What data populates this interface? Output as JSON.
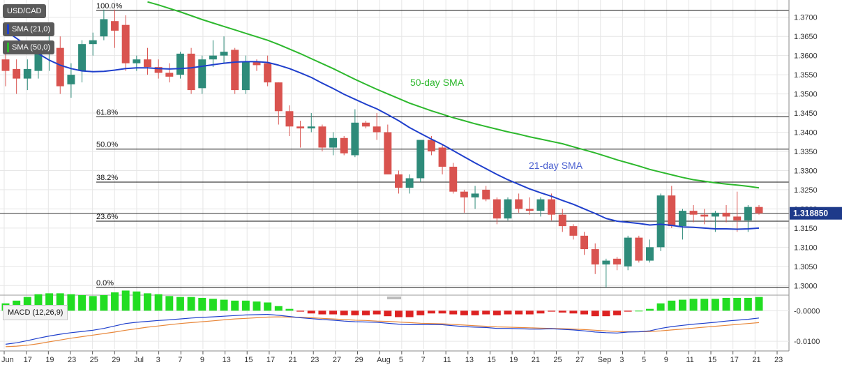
{
  "chart_data": {
    "type": "candlestick",
    "symbol": "USD/CAD",
    "last_price_label": "1.318850",
    "last_price": 1.31885,
    "indicators": {
      "sma21_label": "SMA (21,0)",
      "sma50_label": "SMA (50,0)",
      "sma21_annotation": "21-day SMA",
      "sma50_annotation": "50-day SMA",
      "macd_label": "MACD (12,26,9)"
    },
    "y_ticks": [
      1.3,
      1.305,
      1.31,
      1.315,
      1.32,
      1.325,
      1.33,
      1.335,
      1.34,
      1.345,
      1.35,
      1.355,
      1.36,
      1.365,
      1.37
    ],
    "y_tick_labels": [
      "1.3000",
      "1.3050",
      "1.3100",
      "1.3150",
      "1.3200",
      "1.3250",
      "1.3300",
      "1.3350",
      "1.3400",
      "1.3450",
      "1.3500",
      "1.3550",
      "1.3600",
      "1.3650",
      "1.3700"
    ],
    "ylim": [
      1.2975,
      1.3745
    ],
    "macd_y_ticks": [
      0.0,
      -0.01
    ],
    "macd_y_tick_labels": [
      "-0.0000",
      "-0.0100"
    ],
    "macd_ylim": [
      -0.0125,
      0.0035
    ],
    "x_tick_labels": [
      "Jun",
      "17",
      "19",
      "23",
      "25",
      "29",
      "Jul",
      "3",
      "7",
      "9",
      "13",
      "15",
      "17",
      "21",
      "23",
      "27",
      "29",
      "Aug",
      "5",
      "7",
      "11",
      "13",
      "15",
      "19",
      "21",
      "25",
      "27",
      "Sep",
      "3",
      "5",
      "9",
      "11",
      "15",
      "17",
      "21",
      "23"
    ],
    "fibonacci": [
      {
        "label": "100.0%",
        "price": 1.3718
      },
      {
        "label": "61.8%",
        "price": 1.344
      },
      {
        "label": "50.0%",
        "price": 1.3356
      },
      {
        "label": "38.2%",
        "price": 1.327
      },
      {
        "label": "23.6%",
        "price": 1.3168
      },
      {
        "label": "0.0%",
        "price": 1.2995
      }
    ],
    "candles": [
      {
        "o": 1.359,
        "h": 1.361,
        "l": 1.352,
        "c": 1.356
      },
      {
        "o": 1.3565,
        "h": 1.359,
        "l": 1.35,
        "c": 1.354
      },
      {
        "o": 1.354,
        "h": 1.359,
        "l": 1.351,
        "c": 1.3565
      },
      {
        "o": 1.356,
        "h": 1.364,
        "l": 1.354,
        "c": 1.361
      },
      {
        "o": 1.3605,
        "h": 1.366,
        "l": 1.356,
        "c": 1.362
      },
      {
        "o": 1.362,
        "h": 1.365,
        "l": 1.35,
        "c": 1.352
      },
      {
        "o": 1.3525,
        "h": 1.358,
        "l": 1.349,
        "c": 1.355
      },
      {
        "o": 1.356,
        "h": 1.364,
        "l": 1.353,
        "c": 1.363
      },
      {
        "o": 1.363,
        "h": 1.366,
        "l": 1.36,
        "c": 1.364
      },
      {
        "o": 1.365,
        "h": 1.372,
        "l": 1.364,
        "c": 1.3695
      },
      {
        "o": 1.369,
        "h": 1.372,
        "l": 1.362,
        "c": 1.3665
      },
      {
        "o": 1.368,
        "h": 1.3705,
        "l": 1.356,
        "c": 1.358
      },
      {
        "o": 1.358,
        "h": 1.36,
        "l": 1.356,
        "c": 1.359
      },
      {
        "o": 1.359,
        "h": 1.362,
        "l": 1.355,
        "c": 1.357
      },
      {
        "o": 1.357,
        "h": 1.359,
        "l": 1.354,
        "c": 1.3555
      },
      {
        "o": 1.3555,
        "h": 1.358,
        "l": 1.353,
        "c": 1.3545
      },
      {
        "o": 1.355,
        "h": 1.361,
        "l": 1.354,
        "c": 1.3605
      },
      {
        "o": 1.3605,
        "h": 1.362,
        "l": 1.35,
        "c": 1.351
      },
      {
        "o": 1.3515,
        "h": 1.36,
        "l": 1.35,
        "c": 1.359
      },
      {
        "o": 1.359,
        "h": 1.364,
        "l": 1.357,
        "c": 1.36
      },
      {
        "o": 1.36,
        "h": 1.365,
        "l": 1.358,
        "c": 1.361
      },
      {
        "o": 1.3615,
        "h": 1.362,
        "l": 1.35,
        "c": 1.351
      },
      {
        "o": 1.351,
        "h": 1.36,
        "l": 1.35,
        "c": 1.3585
      },
      {
        "o": 1.3585,
        "h": 1.359,
        "l": 1.356,
        "c": 1.3575
      },
      {
        "o": 1.358,
        "h": 1.36,
        "l": 1.352,
        "c": 1.353
      },
      {
        "o": 1.353,
        "h": 1.353,
        "l": 1.342,
        "c": 1.3455
      },
      {
        "o": 1.3455,
        "h": 1.347,
        "l": 1.339,
        "c": 1.3415
      },
      {
        "o": 1.3415,
        "h": 1.343,
        "l": 1.336,
        "c": 1.341
      },
      {
        "o": 1.341,
        "h": 1.345,
        "l": 1.34,
        "c": 1.3415
      },
      {
        "o": 1.3415,
        "h": 1.342,
        "l": 1.335,
        "c": 1.336
      },
      {
        "o": 1.336,
        "h": 1.34,
        "l": 1.334,
        "c": 1.3385
      },
      {
        "o": 1.3385,
        "h": 1.339,
        "l": 1.334,
        "c": 1.3345
      },
      {
        "o": 1.334,
        "h": 1.346,
        "l": 1.3335,
        "c": 1.3425
      },
      {
        "o": 1.3425,
        "h": 1.343,
        "l": 1.341,
        "c": 1.3415
      },
      {
        "o": 1.3415,
        "h": 1.345,
        "l": 1.338,
        "c": 1.34
      },
      {
        "o": 1.34,
        "h": 1.342,
        "l": 1.329,
        "c": 1.329
      },
      {
        "o": 1.329,
        "h": 1.33,
        "l": 1.324,
        "c": 1.3255
      },
      {
        "o": 1.3255,
        "h": 1.329,
        "l": 1.324,
        "c": 1.328
      },
      {
        "o": 1.328,
        "h": 1.338,
        "l": 1.327,
        "c": 1.338
      },
      {
        "o": 1.338,
        "h": 1.339,
        "l": 1.334,
        "c": 1.335
      },
      {
        "o": 1.336,
        "h": 1.337,
        "l": 1.329,
        "c": 1.331
      },
      {
        "o": 1.331,
        "h": 1.332,
        "l": 1.324,
        "c": 1.3245
      },
      {
        "o": 1.3245,
        "h": 1.325,
        "l": 1.319,
        "c": 1.323
      },
      {
        "o": 1.323,
        "h": 1.326,
        "l": 1.32,
        "c": 1.324
      },
      {
        "o": 1.325,
        "h": 1.326,
        "l": 1.322,
        "c": 1.3225
      },
      {
        "o": 1.3225,
        "h": 1.323,
        "l": 1.316,
        "c": 1.3175
      },
      {
        "o": 1.3175,
        "h": 1.323,
        "l": 1.317,
        "c": 1.3225
      },
      {
        "o": 1.3225,
        "h": 1.324,
        "l": 1.319,
        "c": 1.32
      },
      {
        "o": 1.32,
        "h": 1.323,
        "l": 1.3185,
        "c": 1.3195
      },
      {
        "o": 1.3195,
        "h": 1.323,
        "l": 1.318,
        "c": 1.3225
      },
      {
        "o": 1.3225,
        "h": 1.324,
        "l": 1.317,
        "c": 1.3185
      },
      {
        "o": 1.3185,
        "h": 1.32,
        "l": 1.314,
        "c": 1.3155
      },
      {
        "o": 1.3155,
        "h": 1.316,
        "l": 1.312,
        "c": 1.313
      },
      {
        "o": 1.313,
        "h": 1.314,
        "l": 1.308,
        "c": 1.3095
      },
      {
        "o": 1.3095,
        "h": 1.311,
        "l": 1.303,
        "c": 1.3055
      },
      {
        "o": 1.3055,
        "h": 1.307,
        "l": 1.2995,
        "c": 1.3065
      },
      {
        "o": 1.307,
        "h": 1.3075,
        "l": 1.304,
        "c": 1.3055
      },
      {
        "o": 1.305,
        "h": 1.313,
        "l": 1.304,
        "c": 1.3125
      },
      {
        "o": 1.3125,
        "h": 1.313,
        "l": 1.306,
        "c": 1.3065
      },
      {
        "o": 1.3065,
        "h": 1.312,
        "l": 1.306,
        "c": 1.31
      },
      {
        "o": 1.31,
        "h": 1.324,
        "l": 1.309,
        "c": 1.3235
      },
      {
        "o": 1.3235,
        "h": 1.326,
        "l": 1.315,
        "c": 1.3155
      },
      {
        "o": 1.3155,
        "h": 1.32,
        "l": 1.312,
        "c": 1.3195
      },
      {
        "o": 1.3195,
        "h": 1.321,
        "l": 1.3165,
        "c": 1.3185
      },
      {
        "o": 1.3185,
        "h": 1.32,
        "l": 1.316,
        "c": 1.318
      },
      {
        "o": 1.318,
        "h": 1.3195,
        "l": 1.314,
        "c": 1.319
      },
      {
        "o": 1.319,
        "h": 1.321,
        "l": 1.3165,
        "c": 1.318
      },
      {
        "o": 1.318,
        "h": 1.3245,
        "l": 1.314,
        "c": 1.317
      },
      {
        "o": 1.317,
        "h": 1.321,
        "l": 1.314,
        "c": 1.3205
      },
      {
        "o": 1.3205,
        "h": 1.321,
        "l": 1.3185,
        "c": 1.31885
      }
    ],
    "sma21": [
      1.3665,
      1.3645,
      1.3625,
      1.3605,
      1.3588,
      1.3575,
      1.3566,
      1.356,
      1.3558,
      1.3559,
      1.3562,
      1.3566,
      1.3568,
      1.3568,
      1.3566,
      1.3565,
      1.3566,
      1.3568,
      1.3572,
      1.3576,
      1.358,
      1.3583,
      1.3584,
      1.3584,
      1.3582,
      1.3575,
      1.3566,
      1.3555,
      1.3543,
      1.3528,
      1.3514,
      1.3499,
      1.3486,
      1.3473,
      1.3461,
      1.3446,
      1.343,
      1.3412,
      1.3397,
      1.3382,
      1.3368,
      1.3352,
      1.3336,
      1.332,
      1.3305,
      1.329,
      1.3276,
      1.3264,
      1.3252,
      1.3242,
      1.3233,
      1.3222,
      1.3212,
      1.32,
      1.3188,
      1.3175,
      1.3168,
      1.3165,
      1.3162,
      1.3158,
      1.316,
      1.3157,
      1.3153,
      1.3152,
      1.315,
      1.3148,
      1.3148,
      1.3147,
      1.3148,
      1.315
    ],
    "sma50": [
      null,
      null,
      null,
      null,
      null,
      null,
      null,
      null,
      null,
      null,
      null,
      null,
      null,
      1.374,
      1.3732,
      1.3723,
      1.3714,
      1.3704,
      1.3694,
      1.3685,
      1.3676,
      1.3667,
      1.3658,
      1.3649,
      1.364,
      1.3629,
      1.3617,
      1.3605,
      1.3592,
      1.3579,
      1.3566,
      1.3552,
      1.3538,
      1.3525,
      1.3512,
      1.35,
      1.3488,
      1.3476,
      1.3466,
      1.3456,
      1.3447,
      1.3438,
      1.343,
      1.3422,
      1.3415,
      1.3408,
      1.3401,
      1.3395,
      1.3388,
      1.3382,
      1.3376,
      1.337,
      1.3362,
      1.3354,
      1.3346,
      1.3337,
      1.3328,
      1.332,
      1.3312,
      1.3303,
      1.3296,
      1.3289,
      1.3282,
      1.3276,
      1.3272,
      1.3268,
      1.3265,
      1.3262,
      1.3259,
      1.3255
    ],
    "macd_line": [
      -0.011,
      -0.0105,
      -0.0098,
      -0.009,
      -0.0083,
      -0.0077,
      -0.0072,
      -0.0068,
      -0.0064,
      -0.0058,
      -0.005,
      -0.0042,
      -0.0038,
      -0.0035,
      -0.0032,
      -0.003,
      -0.0027,
      -0.0024,
      -0.0022,
      -0.002,
      -0.0018,
      -0.0016,
      -0.0014,
      -0.0013,
      -0.0012,
      -0.0015,
      -0.0019,
      -0.0023,
      -0.0026,
      -0.0029,
      -0.0031,
      -0.0034,
      -0.0036,
      -0.0037,
      -0.0038,
      -0.0041,
      -0.0044,
      -0.0046,
      -0.0046,
      -0.0045,
      -0.0046,
      -0.0049,
      -0.0052,
      -0.0054,
      -0.0055,
      -0.0058,
      -0.0058,
      -0.0059,
      -0.006,
      -0.006,
      -0.0059,
      -0.0061,
      -0.0063,
      -0.0066,
      -0.007,
      -0.0072,
      -0.0073,
      -0.007,
      -0.0069,
      -0.0066,
      -0.0058,
      -0.0052,
      -0.0048,
      -0.0044,
      -0.0041,
      -0.0038,
      -0.0034,
      -0.0031,
      -0.0028,
      -0.0024
    ],
    "signal_line": [
      -0.0118,
      -0.0116,
      -0.0113,
      -0.0108,
      -0.0102,
      -0.0096,
      -0.009,
      -0.0085,
      -0.008,
      -0.0075,
      -0.007,
      -0.0064,
      -0.0059,
      -0.0054,
      -0.005,
      -0.0046,
      -0.0042,
      -0.0039,
      -0.0036,
      -0.0033,
      -0.003,
      -0.0027,
      -0.0025,
      -0.0023,
      -0.0021,
      -0.002,
      -0.0021,
      -0.0022,
      -0.0023,
      -0.0025,
      -0.0027,
      -0.0029,
      -0.0031,
      -0.0032,
      -0.0034,
      -0.0035,
      -0.0037,
      -0.0039,
      -0.0041,
      -0.0042,
      -0.0043,
      -0.0045,
      -0.0047,
      -0.0049,
      -0.0051,
      -0.0053,
      -0.0054,
      -0.0055,
      -0.0056,
      -0.0057,
      -0.0058,
      -0.0059,
      -0.006,
      -0.0062,
      -0.0064,
      -0.0066,
      -0.0068,
      -0.0069,
      -0.0069,
      -0.0068,
      -0.0066,
      -0.0063,
      -0.006,
      -0.0057,
      -0.0054,
      -0.0051,
      -0.0048,
      -0.0045,
      -0.0042,
      -0.0039
    ],
    "colors": {
      "up": "#2e8b7a",
      "down": "#d9534f",
      "sma21": "#1f3fcc",
      "sma50": "#2db82d",
      "macd": "#1f3fcc",
      "signal": "#e8873a",
      "hist_pos": "#22dd22",
      "hist_neg": "#dd2222",
      "grid": "#e6e6e6",
      "fib": "#111111"
    }
  }
}
